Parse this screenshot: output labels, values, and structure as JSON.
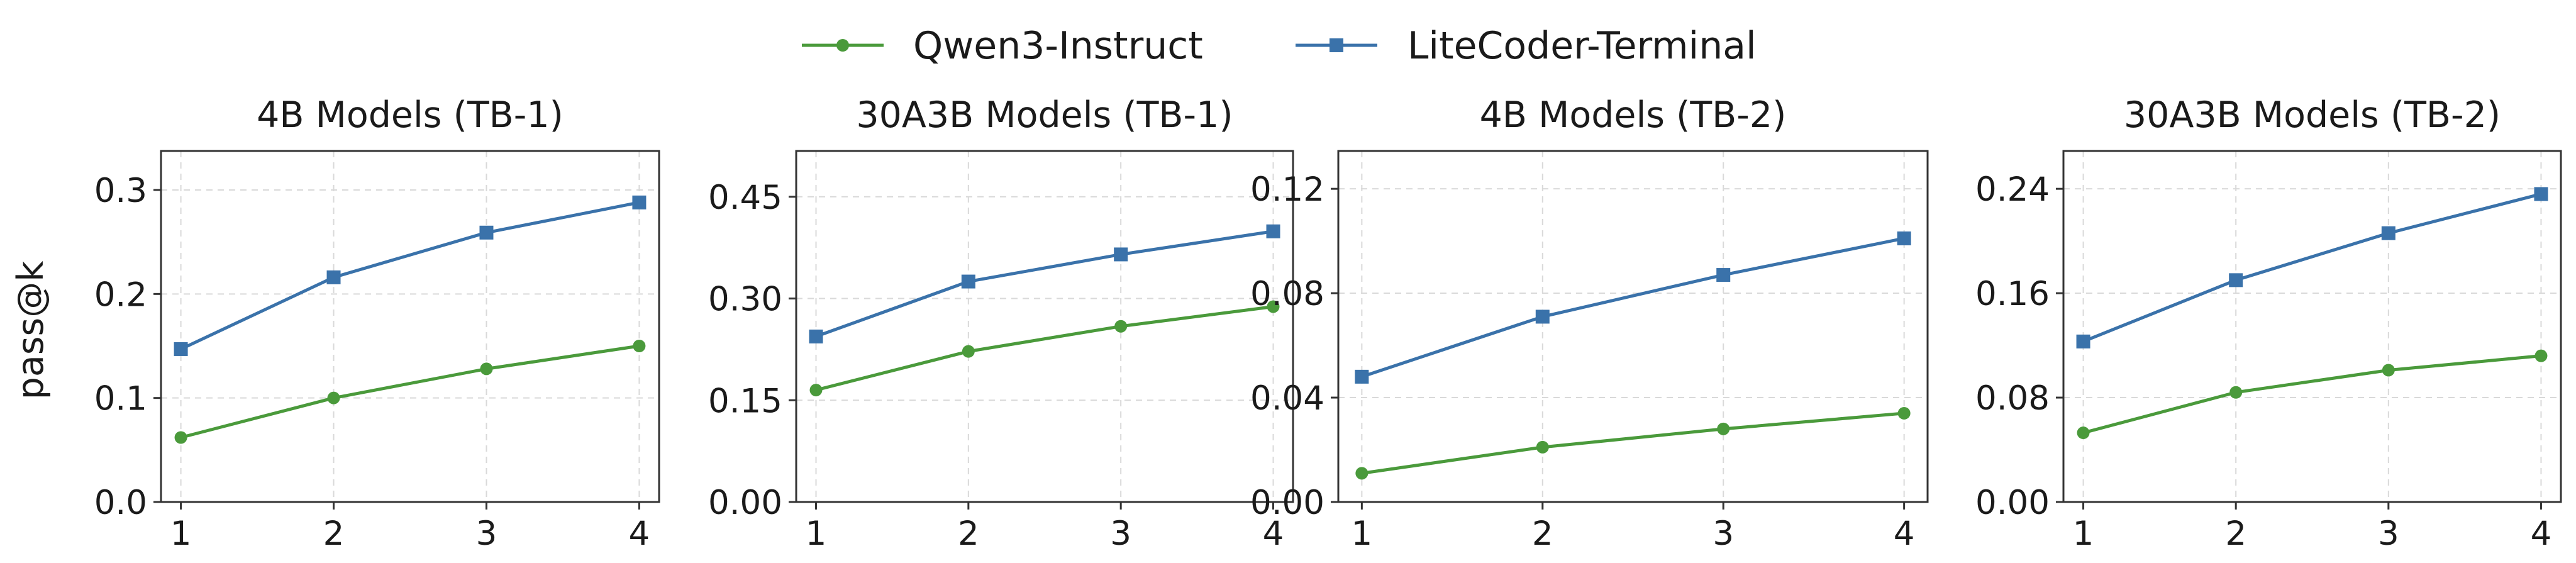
{
  "legend": [
    {
      "name": "Qwen3-Instruct",
      "color": "#4a9a3b",
      "marker": "circle"
    },
    {
      "name": "LiteCoder-Terminal",
      "color": "#3a72aa",
      "marker": "square"
    }
  ],
  "y_axis_label": "pass@k",
  "chart_data": [
    {
      "type": "line",
      "title": "4B Models (TB-1)",
      "x": [
        1,
        2,
        3,
        4
      ],
      "ylim": [
        0,
        0.3375
      ],
      "yticks": [
        "0.0",
        "0.1",
        "0.2",
        "0.3"
      ],
      "ytick_values": [
        0,
        0.1,
        0.2,
        0.3
      ],
      "grid": true,
      "series": [
        {
          "name": "Qwen3-Instruct",
          "values": [
            0.062,
            0.1,
            0.128,
            0.15
          ]
        },
        {
          "name": "LiteCoder-Terminal",
          "values": [
            0.147,
            0.216,
            0.259,
            0.288
          ]
        }
      ]
    },
    {
      "type": "line",
      "title": "30A3B Models (TB-1)",
      "x": [
        1,
        2,
        3,
        4
      ],
      "ylim": [
        0,
        0.5175
      ],
      "yticks": [
        "0.00",
        "0.15",
        "0.30",
        "0.45"
      ],
      "ytick_values": [
        0,
        0.15,
        0.3,
        0.45
      ],
      "grid": true,
      "series": [
        {
          "name": "Qwen3-Instruct",
          "values": [
            0.165,
            0.222,
            0.259,
            0.288
          ]
        },
        {
          "name": "LiteCoder-Terminal",
          "values": [
            0.244,
            0.325,
            0.365,
            0.399
          ]
        }
      ]
    },
    {
      "type": "line",
      "title": "4B Models (TB-2)",
      "x": [
        1,
        2,
        3,
        4
      ],
      "ylim": [
        0,
        0.1345
      ],
      "yticks": [
        "0.00",
        "0.04",
        "0.08",
        "0.12"
      ],
      "ytick_values": [
        0,
        0.04,
        0.08,
        0.12
      ],
      "grid": true,
      "series": [
        {
          "name": "Qwen3-Instruct",
          "values": [
            0.011,
            0.021,
            0.028,
            0.034
          ]
        },
        {
          "name": "LiteCoder-Terminal",
          "values": [
            0.048,
            0.071,
            0.087,
            0.101
          ]
        }
      ]
    },
    {
      "type": "line",
      "title": "30A3B Models (TB-2)",
      "x": [
        1,
        2,
        3,
        4
      ],
      "ylim": [
        0,
        0.269
      ],
      "yticks": [
        "0.00",
        "0.08",
        "0.16",
        "0.24"
      ],
      "ytick_values": [
        0,
        0.08,
        0.16,
        0.24
      ],
      "grid": true,
      "series": [
        {
          "name": "Qwen3-Instruct",
          "values": [
            0.053,
            0.084,
            0.101,
            0.112
          ]
        },
        {
          "name": "LiteCoder-Terminal",
          "values": [
            0.123,
            0.17,
            0.206,
            0.236
          ]
        }
      ]
    }
  ]
}
